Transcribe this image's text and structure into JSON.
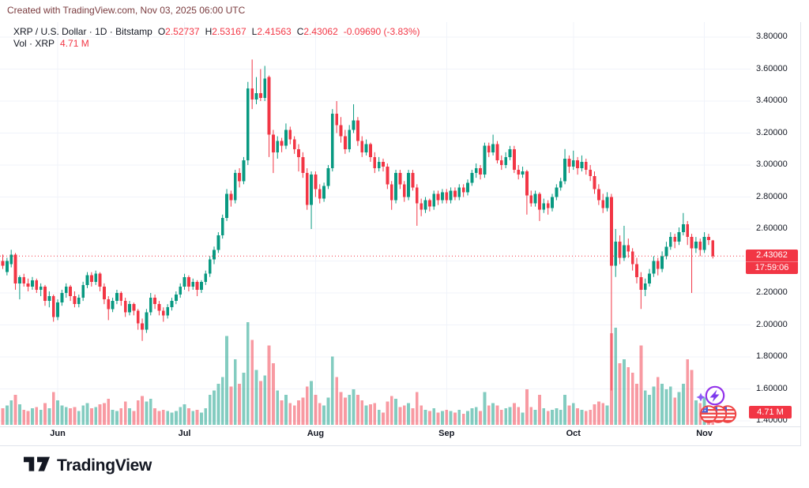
{
  "attribution": "Created with TradingView.com, Nov 03, 2025 06:00 UTC",
  "legend": {
    "title": "XRP / U.S. Dollar · 1D · Bitstamp",
    "ohlc": [
      {
        "k": "O",
        "v": "2.52737"
      },
      {
        "k": "H",
        "v": "2.53167"
      },
      {
        "k": "L",
        "v": "2.41563"
      },
      {
        "k": "C",
        "v": "2.43062"
      }
    ],
    "change": "-0.09690 (-3.83%)",
    "vol_label": "Vol · XRP",
    "vol_value": "4.71 M"
  },
  "footer": {
    "logo_text": "TradingView"
  },
  "icons": {
    "boost": "lightning-circle-icon",
    "sparkle": "sparkle-icon",
    "reactions": "usa-flag-coin-icon-x3",
    "boost_color": "#9333ea",
    "reaction_color": "#ef4444"
  },
  "colors": {
    "up": "#089981",
    "down": "#f23645",
    "vol_up": "rgba(8,153,129,0.5)",
    "vol_down": "rgba(242,54,69,0.5)",
    "grid": "#f0f3fa",
    "axis_text": "#131722",
    "last_price_line": "#f23645",
    "badge_bg": "#f23645",
    "separator": "#e0e3eb"
  },
  "chart_data": {
    "type": "candlestick+volume",
    "symbol": "XRP / U.S. Dollar",
    "interval": "1D",
    "exchange": "Bitstamp",
    "last": {
      "open": 2.52737,
      "high": 2.53167,
      "low": 2.41563,
      "close": 2.43062,
      "change": -0.0969,
      "change_pct": -3.83,
      "price_label": "2.43062",
      "countdown": "17:59:06",
      "volume_label": "4.71 M"
    },
    "y_axis": {
      "top": 3.8,
      "bottom": 1.4,
      "step": 0.2
    },
    "y_ticks": [
      {
        "label": "3.80000",
        "price": 3.8
      },
      {
        "label": "3.60000",
        "price": 3.6
      },
      {
        "label": "3.40000",
        "price": 3.4
      },
      {
        "label": "3.20000",
        "price": 3.2
      },
      {
        "label": "3.00000",
        "price": 3.0
      },
      {
        "label": "2.80000",
        "price": 2.8
      },
      {
        "label": "2.60000",
        "price": 2.6
      },
      {
        "label": "2.20000",
        "price": 2.2
      },
      {
        "label": "2.00000",
        "price": 2.0
      },
      {
        "label": "1.80000",
        "price": 1.8
      },
      {
        "label": "1.60000",
        "price": 1.6
      },
      {
        "label": "1.40000",
        "price": 1.4
      }
    ],
    "gridline_prices": [
      3.8,
      3.6,
      3.4,
      3.2,
      3.0,
      2.8,
      2.6,
      2.4,
      2.2,
      2.0,
      1.8,
      1.6,
      1.4
    ],
    "x_ticks": [
      {
        "label": "Jun",
        "index": 13
      },
      {
        "label": "Jul",
        "index": 43
      },
      {
        "label": "Aug",
        "index": 74
      },
      {
        "label": "Sep",
        "index": 105
      },
      {
        "label": "Oct",
        "index": 135
      },
      {
        "label": "Nov",
        "index": 166
      }
    ],
    "ohlcv_format": [
      "open",
      "high",
      "low",
      "close",
      "volume_millions"
    ],
    "candles": [
      [
        2.4,
        2.44,
        2.35,
        2.37,
        12
      ],
      [
        2.33,
        2.42,
        2.31,
        2.4,
        14
      ],
      [
        2.38,
        2.47,
        2.36,
        2.44,
        18
      ],
      [
        2.44,
        2.45,
        2.22,
        2.26,
        22
      ],
      [
        2.26,
        2.31,
        2.16,
        2.3,
        15
      ],
      [
        2.3,
        2.32,
        2.24,
        2.26,
        11
      ],
      [
        2.26,
        2.29,
        2.21,
        2.24,
        10
      ],
      [
        2.24,
        2.3,
        2.22,
        2.28,
        12
      ],
      [
        2.28,
        2.29,
        2.2,
        2.22,
        13
      ],
      [
        2.22,
        2.26,
        2.18,
        2.24,
        11
      ],
      [
        2.24,
        2.25,
        2.12,
        2.15,
        16
      ],
      [
        2.15,
        2.21,
        2.11,
        2.18,
        12
      ],
      [
        2.18,
        2.19,
        2.02,
        2.05,
        24
      ],
      [
        2.05,
        2.16,
        2.03,
        2.14,
        18
      ],
      [
        2.14,
        2.22,
        2.12,
        2.2,
        14
      ],
      [
        2.2,
        2.26,
        2.17,
        2.24,
        13
      ],
      [
        2.24,
        2.25,
        2.15,
        2.18,
        12
      ],
      [
        2.18,
        2.21,
        2.11,
        2.13,
        13
      ],
      [
        2.13,
        2.19,
        2.11,
        2.17,
        10
      ],
      [
        2.17,
        2.27,
        2.15,
        2.25,
        14
      ],
      [
        2.25,
        2.33,
        2.23,
        2.31,
        16
      ],
      [
        2.31,
        2.33,
        2.24,
        2.27,
        12
      ],
      [
        2.27,
        2.34,
        2.25,
        2.32,
        13
      ],
      [
        2.32,
        2.33,
        2.21,
        2.24,
        15
      ],
      [
        2.24,
        2.26,
        2.13,
        2.16,
        16
      ],
      [
        2.16,
        2.18,
        2.03,
        2.1,
        19
      ],
      [
        2.1,
        2.17,
        2.08,
        2.15,
        11
      ],
      [
        2.15,
        2.22,
        2.13,
        2.2,
        10
      ],
      [
        2.2,
        2.21,
        2.12,
        2.15,
        12
      ],
      [
        2.15,
        2.17,
        2.05,
        2.08,
        17
      ],
      [
        2.08,
        2.15,
        2.06,
        2.13,
        12
      ],
      [
        2.13,
        2.14,
        2.06,
        2.09,
        10
      ],
      [
        2.09,
        2.1,
        1.97,
        2.01,
        18
      ],
      [
        2.01,
        2.04,
        1.9,
        1.97,
        21
      ],
      [
        1.97,
        2.1,
        1.95,
        2.08,
        17
      ],
      [
        2.08,
        2.2,
        2.06,
        2.17,
        19
      ],
      [
        2.17,
        2.19,
        2.1,
        2.13,
        12
      ],
      [
        2.13,
        2.15,
        2.06,
        2.09,
        10
      ],
      [
        2.09,
        2.11,
        2.02,
        2.06,
        11
      ],
      [
        2.06,
        2.13,
        2.04,
        2.11,
        10
      ],
      [
        2.11,
        2.17,
        2.09,
        2.15,
        9
      ],
      [
        2.15,
        2.21,
        2.13,
        2.19,
        10
      ],
      [
        2.19,
        2.26,
        2.17,
        2.24,
        13
      ],
      [
        2.24,
        2.32,
        2.22,
        2.3,
        15
      ],
      [
        2.3,
        2.31,
        2.21,
        2.24,
        12
      ],
      [
        2.24,
        2.29,
        2.22,
        2.27,
        10
      ],
      [
        2.27,
        2.28,
        2.18,
        2.22,
        11
      ],
      [
        2.22,
        2.28,
        2.2,
        2.27,
        9
      ],
      [
        2.27,
        2.34,
        2.25,
        2.32,
        12
      ],
      [
        2.32,
        2.43,
        2.3,
        2.41,
        22
      ],
      [
        2.41,
        2.49,
        2.38,
        2.47,
        25
      ],
      [
        2.47,
        2.58,
        2.45,
        2.56,
        30
      ],
      [
        2.56,
        2.69,
        2.54,
        2.67,
        35
      ],
      [
        2.67,
        2.85,
        2.65,
        2.82,
        65
      ],
      [
        2.82,
        2.84,
        2.74,
        2.78,
        28
      ],
      [
        2.78,
        2.97,
        2.76,
        2.95,
        48
      ],
      [
        2.95,
        2.98,
        2.86,
        2.9,
        30
      ],
      [
        2.9,
        3.05,
        2.88,
        3.03,
        38
      ],
      [
        3.03,
        3.52,
        3.0,
        3.48,
        75
      ],
      [
        3.48,
        3.66,
        3.35,
        3.41,
        62
      ],
      [
        3.41,
        3.55,
        3.38,
        3.45,
        40
      ],
      [
        3.45,
        3.6,
        3.4,
        3.42,
        32
      ],
      [
        3.42,
        3.62,
        3.4,
        3.54,
        36
      ],
      [
        3.55,
        3.56,
        3.05,
        3.19,
        58
      ],
      [
        3.19,
        3.22,
        2.95,
        3.08,
        45
      ],
      [
        3.08,
        3.18,
        3.04,
        3.15,
        25
      ],
      [
        3.15,
        3.17,
        3.08,
        3.12,
        18
      ],
      [
        3.12,
        3.26,
        3.1,
        3.22,
        22
      ],
      [
        3.22,
        3.24,
        3.13,
        3.16,
        16
      ],
      [
        3.16,
        3.18,
        3.07,
        3.1,
        14
      ],
      [
        3.1,
        3.13,
        2.96,
        3.05,
        18
      ],
      [
        3.05,
        3.08,
        2.92,
        2.95,
        20
      ],
      [
        2.95,
        2.98,
        2.72,
        2.75,
        28
      ],
      [
        2.75,
        2.96,
        2.6,
        2.94,
        32
      ],
      [
        2.94,
        2.96,
        2.8,
        2.85,
        22
      ],
      [
        2.85,
        2.88,
        2.76,
        2.79,
        16
      ],
      [
        2.79,
        2.89,
        2.77,
        2.87,
        14
      ],
      [
        2.87,
        3.0,
        2.85,
        2.98,
        20
      ],
      [
        2.98,
        3.35,
        2.96,
        3.32,
        50
      ],
      [
        3.32,
        3.4,
        3.2,
        3.25,
        35
      ],
      [
        3.25,
        3.3,
        3.14,
        3.18,
        24
      ],
      [
        3.18,
        3.22,
        3.07,
        3.1,
        20
      ],
      [
        3.1,
        3.25,
        3.08,
        3.22,
        22
      ],
      [
        3.22,
        3.38,
        3.2,
        3.28,
        26
      ],
      [
        3.28,
        3.3,
        3.12,
        3.15,
        22
      ],
      [
        3.15,
        3.18,
        3.05,
        3.08,
        18
      ],
      [
        3.08,
        3.16,
        3.06,
        3.13,
        14
      ],
      [
        3.13,
        3.14,
        3.02,
        3.05,
        15
      ],
      [
        3.05,
        3.08,
        2.95,
        2.98,
        16
      ],
      [
        2.98,
        3.05,
        2.96,
        3.02,
        11
      ],
      [
        3.02,
        3.04,
        2.96,
        2.99,
        9
      ],
      [
        2.99,
        3.01,
        2.85,
        2.88,
        17
      ],
      [
        2.88,
        2.9,
        2.72,
        2.78,
        21
      ],
      [
        2.78,
        2.97,
        2.76,
        2.95,
        19
      ],
      [
        2.95,
        2.97,
        2.85,
        2.88,
        13
      ],
      [
        2.88,
        2.9,
        2.77,
        2.8,
        14
      ],
      [
        2.8,
        2.97,
        2.78,
        2.95,
        16
      ],
      [
        2.95,
        2.97,
        2.84,
        2.86,
        12
      ],
      [
        2.86,
        2.88,
        2.62,
        2.76,
        24
      ],
      [
        2.76,
        2.79,
        2.68,
        2.72,
        14
      ],
      [
        2.72,
        2.8,
        2.7,
        2.78,
        11
      ],
      [
        2.78,
        2.79,
        2.71,
        2.74,
        10
      ],
      [
        2.74,
        2.84,
        2.72,
        2.82,
        12
      ],
      [
        2.82,
        2.84,
        2.75,
        2.78,
        9
      ],
      [
        2.78,
        2.85,
        2.76,
        2.83,
        10
      ],
      [
        2.83,
        2.85,
        2.76,
        2.78,
        11
      ],
      [
        2.78,
        2.86,
        2.76,
        2.84,
        10
      ],
      [
        2.84,
        2.86,
        2.78,
        2.8,
        9
      ],
      [
        2.8,
        2.88,
        2.78,
        2.86,
        11
      ],
      [
        2.86,
        2.88,
        2.8,
        2.83,
        8
      ],
      [
        2.83,
        2.91,
        2.81,
        2.89,
        10
      ],
      [
        2.89,
        2.97,
        2.87,
        2.95,
        12
      ],
      [
        2.95,
        3.01,
        2.92,
        2.98,
        13
      ],
      [
        2.98,
        3.0,
        2.91,
        2.94,
        10
      ],
      [
        2.94,
        3.14,
        2.92,
        3.12,
        24
      ],
      [
        3.12,
        3.14,
        3.05,
        3.08,
        14
      ],
      [
        3.08,
        3.19,
        3.06,
        3.13,
        16
      ],
      [
        3.13,
        3.15,
        3.01,
        3.03,
        14
      ],
      [
        3.03,
        3.06,
        2.97,
        3.0,
        11
      ],
      [
        3.0,
        3.08,
        2.98,
        3.05,
        12
      ],
      [
        3.05,
        3.12,
        3.03,
        3.1,
        13
      ],
      [
        3.1,
        3.12,
        2.95,
        2.97,
        16
      ],
      [
        2.97,
        3.0,
        2.91,
        2.94,
        13
      ],
      [
        2.94,
        2.99,
        2.92,
        2.96,
        9
      ],
      [
        2.96,
        2.97,
        2.69,
        2.81,
        26
      ],
      [
        2.81,
        2.84,
        2.74,
        2.76,
        13
      ],
      [
        2.76,
        2.84,
        2.74,
        2.82,
        11
      ],
      [
        2.82,
        2.83,
        2.65,
        2.72,
        22
      ],
      [
        2.72,
        2.79,
        2.7,
        2.76,
        12
      ],
      [
        2.76,
        2.78,
        2.69,
        2.73,
        10
      ],
      [
        2.73,
        2.82,
        2.71,
        2.8,
        11
      ],
      [
        2.8,
        2.88,
        2.78,
        2.86,
        12
      ],
      [
        2.86,
        2.92,
        2.84,
        2.9,
        11
      ],
      [
        2.9,
        3.1,
        2.88,
        3.04,
        22
      ],
      [
        3.04,
        3.06,
        2.95,
        2.99,
        14
      ],
      [
        2.99,
        3.09,
        2.97,
        3.03,
        16
      ],
      [
        3.03,
        3.05,
        2.94,
        2.98,
        12
      ],
      [
        2.98,
        3.06,
        2.96,
        3.02,
        11
      ],
      [
        3.02,
        3.04,
        2.94,
        2.97,
        10
      ],
      [
        2.97,
        3.0,
        2.9,
        2.93,
        11
      ],
      [
        2.93,
        2.96,
        2.82,
        2.85,
        15
      ],
      [
        2.85,
        2.88,
        2.75,
        2.78,
        17
      ],
      [
        2.78,
        2.82,
        2.7,
        2.73,
        16
      ],
      [
        2.73,
        2.83,
        2.71,
        2.8,
        14
      ],
      [
        2.8,
        2.82,
        1.59,
        2.37,
        67
      ],
      [
        2.37,
        2.6,
        2.3,
        2.52,
        71
      ],
      [
        2.52,
        2.56,
        2.38,
        2.42,
        45
      ],
      [
        2.42,
        2.62,
        2.4,
        2.5,
        48
      ],
      [
        2.5,
        2.54,
        2.42,
        2.46,
        42
      ],
      [
        2.46,
        2.48,
        2.34,
        2.38,
        38
      ],
      [
        2.38,
        2.42,
        2.26,
        2.3,
        30
      ],
      [
        2.3,
        2.33,
        2.1,
        2.22,
        58
      ],
      [
        2.22,
        2.29,
        2.18,
        2.26,
        25
      ],
      [
        2.26,
        2.35,
        2.24,
        2.32,
        22
      ],
      [
        2.32,
        2.43,
        2.3,
        2.4,
        28
      ],
      [
        2.4,
        2.42,
        2.31,
        2.35,
        35
      ],
      [
        2.35,
        2.46,
        2.33,
        2.43,
        30
      ],
      [
        2.43,
        2.52,
        2.41,
        2.49,
        26
      ],
      [
        2.49,
        2.58,
        2.47,
        2.55,
        28
      ],
      [
        2.55,
        2.57,
        2.48,
        2.52,
        20
      ],
      [
        2.52,
        2.61,
        2.5,
        2.58,
        24
      ],
      [
        2.58,
        2.7,
        2.56,
        2.63,
        30
      ],
      [
        2.63,
        2.65,
        2.5,
        2.55,
        48
      ],
      [
        2.55,
        2.57,
        2.2,
        2.48,
        40
      ],
      [
        2.48,
        2.55,
        2.45,
        2.52,
        18
      ],
      [
        2.52,
        2.54,
        2.43,
        2.47,
        16
      ],
      [
        2.47,
        2.58,
        2.45,
        2.55,
        20
      ],
      [
        2.55,
        2.57,
        2.5,
        2.53,
        12
      ],
      [
        2.52737,
        2.53167,
        2.41563,
        2.43062,
        4.71
      ]
    ]
  }
}
